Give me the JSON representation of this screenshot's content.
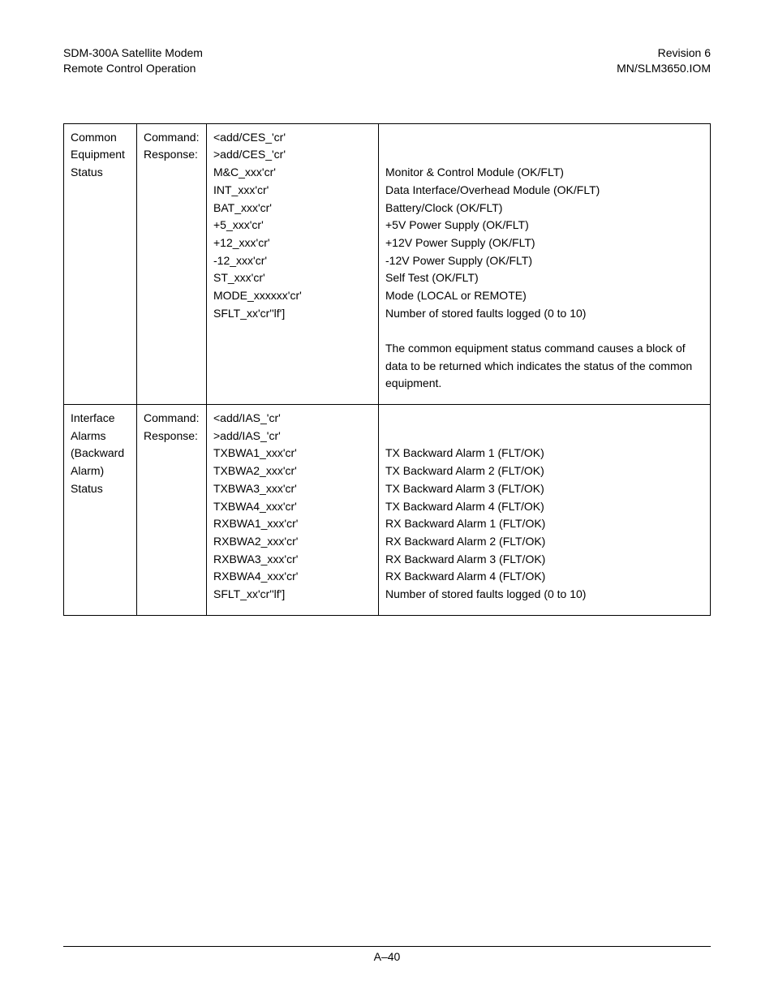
{
  "header": {
    "left_line1": "SDM-300A Satellite Modem",
    "left_line2": "Remote Control Operation",
    "right_line1": "Revision 6",
    "right_line2": "MN/SLM3650.IOM"
  },
  "footer": {
    "page_label": "A–40"
  },
  "labels": {
    "command": "Command:",
    "response": "Response:"
  },
  "rows": [
    {
      "name": "Common Equipment Status",
      "code_lines": [
        "<add/CES_'cr'",
        ">add/CES_'cr'",
        "M&C_xxx'cr'",
        "INT_xxx'cr'",
        "BAT_xxx'cr'",
        "+5_xxx'cr'",
        "+12_xxx'cr'",
        "-12_xxx'cr'",
        "ST_xxx'cr'",
        "MODE_xxxxxx'cr'",
        "SFLT_xx'cr''lf']"
      ],
      "desc_lines": [
        "",
        "",
        "Monitor & Control Module (OK/FLT)",
        "Data Interface/Overhead Module (OK/FLT)",
        "Battery/Clock (OK/FLT)",
        "+5V Power Supply (OK/FLT)",
        "+12V Power Supply (OK/FLT)",
        "-12V Power Supply (OK/FLT)",
        "Self Test (OK/FLT)",
        "Mode (LOCAL or REMOTE)",
        "Number of stored faults logged (0 to 10)"
      ],
      "note": "The common equipment status command causes a block of data to be returned which indicates the status of the common equipment."
    },
    {
      "name": "Interface Alarms (Backward Alarm) Status",
      "code_lines": [
        "<add/IAS_'cr'",
        ">add/IAS_'cr'",
        "TXBWA1_xxx'cr'",
        "TXBWA2_xxx'cr'",
        "TXBWA3_xxx'cr'",
        "TXBWA4_xxx'cr'",
        "RXBWA1_xxx'cr'",
        "RXBWA2_xxx'cr'",
        "RXBWA3_xxx'cr'",
        "RXBWA4_xxx'cr'",
        "SFLT_xx'cr''lf']"
      ],
      "desc_lines": [
        "",
        "",
        "TX Backward Alarm 1 (FLT/OK)",
        "TX Backward Alarm 2 (FLT/OK)",
        "TX Backward Alarm 3 (FLT/OK)",
        "TX Backward Alarm 4 (FLT/OK)",
        "RX Backward Alarm 1 (FLT/OK)",
        "RX Backward Alarm 2 (FLT/OK)",
        "RX Backward Alarm 3 (FLT/OK)",
        "RX Backward Alarm 4 (FLT/OK)",
        "Number of stored faults logged (0 to 10)"
      ],
      "note": ""
    }
  ]
}
